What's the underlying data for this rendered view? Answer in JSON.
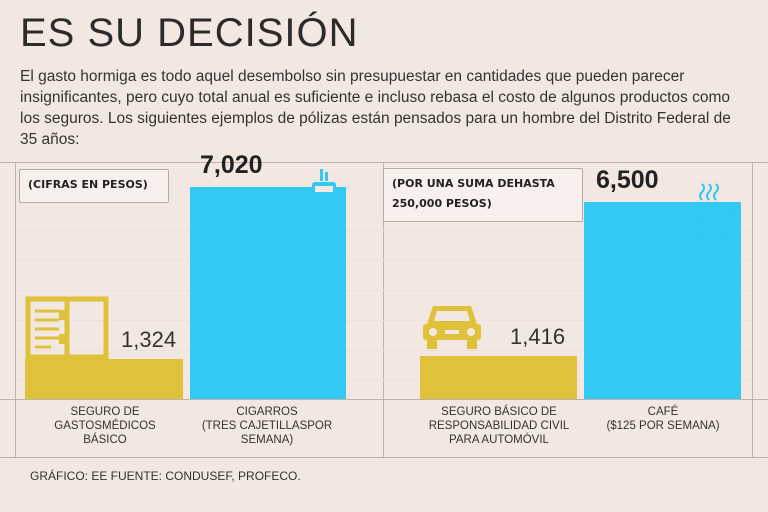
{
  "title": "ES SU DECISIÓN",
  "intro": "El gasto hormiga es todo aquel desembolso sin presupuestar en cantidades que pueden parecer insignificantes, pero cuyo total anual es suficiente e incluso rebasa el costo de algunos productos como los seguros. Los siguientes ejemplos de pólizas están pensados para un hombre del Distrito Federal de 35 años:",
  "footer": "GRÁFICO: EE  FUENTE: CONDUSEF, PROFECO.",
  "colors": {
    "insurance": "#dfc13a",
    "expense": "#33c9f4",
    "background": "#f3e7e1"
  },
  "chart_data": [
    {
      "type": "bar",
      "note": "(CIFRAS EN PESOS)",
      "categories": [
        {
          "lines": [
            "SEGURO DE",
            "GASTOSMÉDICOS",
            "BÁSICO"
          ],
          "value": 1324,
          "label": "1,324",
          "icon": "notebook-icon"
        },
        {
          "lines": [
            "CIGARROS",
            "(TRES CAJETILLASPOR",
            "SEMANA)"
          ],
          "value": 7020,
          "label": "7,020",
          "icon": "cigarette-pack-icon"
        }
      ],
      "ylim": [
        0,
        7600
      ]
    },
    {
      "type": "bar",
      "note_lines": [
        "(POR UNA SUMA DEHASTA",
        "250,000 PESOS)"
      ],
      "categories": [
        {
          "lines": [
            "SEGURO BÁSICO DE",
            "RESPONSABILIDAD CIVIL",
            "PARA AUTOMÓVIL"
          ],
          "value": 1416,
          "label": "1,416",
          "icon": "car-icon"
        },
        {
          "lines": [
            "CAFÉ",
            "($125 POR SEMANA)"
          ],
          "value": 6500,
          "label": "6,500",
          "icon": "coffee-cup-icon"
        }
      ],
      "ylim": [
        0,
        7600
      ]
    }
  ]
}
